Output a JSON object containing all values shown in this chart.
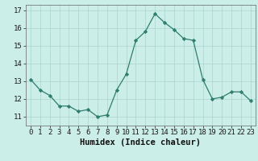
{
  "x": [
    0,
    1,
    2,
    3,
    4,
    5,
    6,
    7,
    8,
    9,
    10,
    11,
    12,
    13,
    14,
    15,
    16,
    17,
    18,
    19,
    20,
    21,
    22,
    23
  ],
  "y": [
    13.1,
    12.5,
    12.2,
    11.6,
    11.6,
    11.3,
    11.4,
    11.0,
    11.1,
    12.5,
    13.4,
    15.3,
    15.8,
    16.8,
    16.3,
    15.9,
    15.4,
    15.3,
    13.1,
    12.0,
    12.1,
    12.4,
    12.4,
    11.9
  ],
  "xlabel": "Humidex (Indice chaleur)",
  "ylim": [
    10.5,
    17.3
  ],
  "xlim": [
    -0.5,
    23.5
  ],
  "yticks": [
    11,
    12,
    13,
    14,
    15,
    16,
    17
  ],
  "xticks": [
    0,
    1,
    2,
    3,
    4,
    5,
    6,
    7,
    8,
    9,
    10,
    11,
    12,
    13,
    14,
    15,
    16,
    17,
    18,
    19,
    20,
    21,
    22,
    23
  ],
  "line_color": "#2e7d6e",
  "marker_color": "#2e7d6e",
  "bg_color": "#cceee8",
  "grid_color": "#aad4ce",
  "tick_fontsize": 6.5,
  "label_fontsize": 7.5
}
